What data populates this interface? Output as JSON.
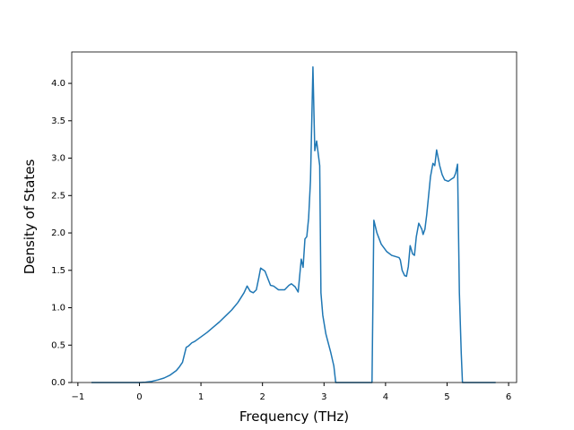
{
  "chart_data": {
    "type": "line",
    "x_label": "Frequency (THz)",
    "y_label": "Density of States",
    "xlim": [
      -1.1,
      6.13
    ],
    "ylim": [
      0,
      4.42
    ],
    "xticks": [
      {
        "value": -1,
        "label": "−1"
      },
      0,
      1,
      2,
      3,
      4,
      5,
      6
    ],
    "yticks": [
      {
        "value": 0,
        "label": "0.0"
      },
      {
        "value": 0.5,
        "label": "0.5"
      },
      {
        "value": 1,
        "label": "1.0"
      },
      {
        "value": 1.5,
        "label": "1.5"
      },
      {
        "value": 2,
        "label": "2.0"
      },
      {
        "value": 2.5,
        "label": "2.5"
      },
      {
        "value": 3,
        "label": "3.0"
      },
      {
        "value": 3.5,
        "label": "3.5"
      },
      {
        "value": 4,
        "label": "4.0"
      }
    ],
    "grid": false,
    "x": [
      -0.78,
      0,
      0.1,
      0.2,
      0.3,
      0.4,
      0.5,
      0.6,
      0.65,
      0.7,
      0.76,
      0.8,
      0.85,
      0.9,
      1.0,
      1.1,
      1.2,
      1.3,
      1.4,
      1.5,
      1.6,
      1.7,
      1.75,
      1.8,
      1.85,
      1.9,
      1.94,
      1.97,
      2.04,
      2.13,
      2.18,
      2.26,
      2.36,
      2.43,
      2.47,
      2.53,
      2.58,
      2.63,
      2.66,
      2.69,
      2.72,
      2.75,
      2.78,
      2.82,
      2.85,
      2.88,
      2.93,
      2.95,
      2.98,
      3.03,
      3.11,
      3.16,
      3.19,
      3.78,
      3.81,
      3.86,
      3.93,
      4.02,
      4.1,
      4.22,
      4.24,
      4.27,
      4.31,
      4.34,
      4.37,
      4.4,
      4.44,
      4.47,
      4.5,
      4.54,
      4.59,
      4.61,
      4.64,
      4.67,
      4.7,
      4.73,
      4.77,
      4.8,
      4.83,
      4.88,
      4.92,
      4.96,
      5.02,
      5.07,
      5.11,
      5.14,
      5.17,
      5.2,
      5.23,
      5.25,
      5.79
    ],
    "series": [
      {
        "color": "#1f77b4",
        "values": [
          0,
          0,
          0.005,
          0.015,
          0.035,
          0.06,
          0.1,
          0.16,
          0.21,
          0.27,
          0.47,
          0.49,
          0.53,
          0.55,
          0.61,
          0.67,
          0.74,
          0.81,
          0.89,
          0.97,
          1.07,
          1.2,
          1.29,
          1.22,
          1.2,
          1.24,
          1.4,
          1.53,
          1.49,
          1.3,
          1.29,
          1.24,
          1.24,
          1.3,
          1.32,
          1.28,
          1.21,
          1.65,
          1.54,
          1.92,
          1.95,
          2.2,
          2.7,
          4.22,
          3.1,
          3.23,
          2.9,
          1.2,
          0.9,
          0.65,
          0.4,
          0.22,
          0,
          0,
          2.17,
          2.0,
          1.85,
          1.75,
          1.7,
          1.67,
          1.64,
          1.5,
          1.43,
          1.42,
          1.55,
          1.83,
          1.72,
          1.7,
          1.95,
          2.13,
          2.05,
          1.98,
          2.05,
          2.25,
          2.5,
          2.75,
          2.93,
          2.9,
          3.11,
          2.9,
          2.78,
          2.71,
          2.69,
          2.72,
          2.74,
          2.8,
          2.92,
          1.2,
          0.4,
          0,
          0
        ]
      }
    ]
  }
}
